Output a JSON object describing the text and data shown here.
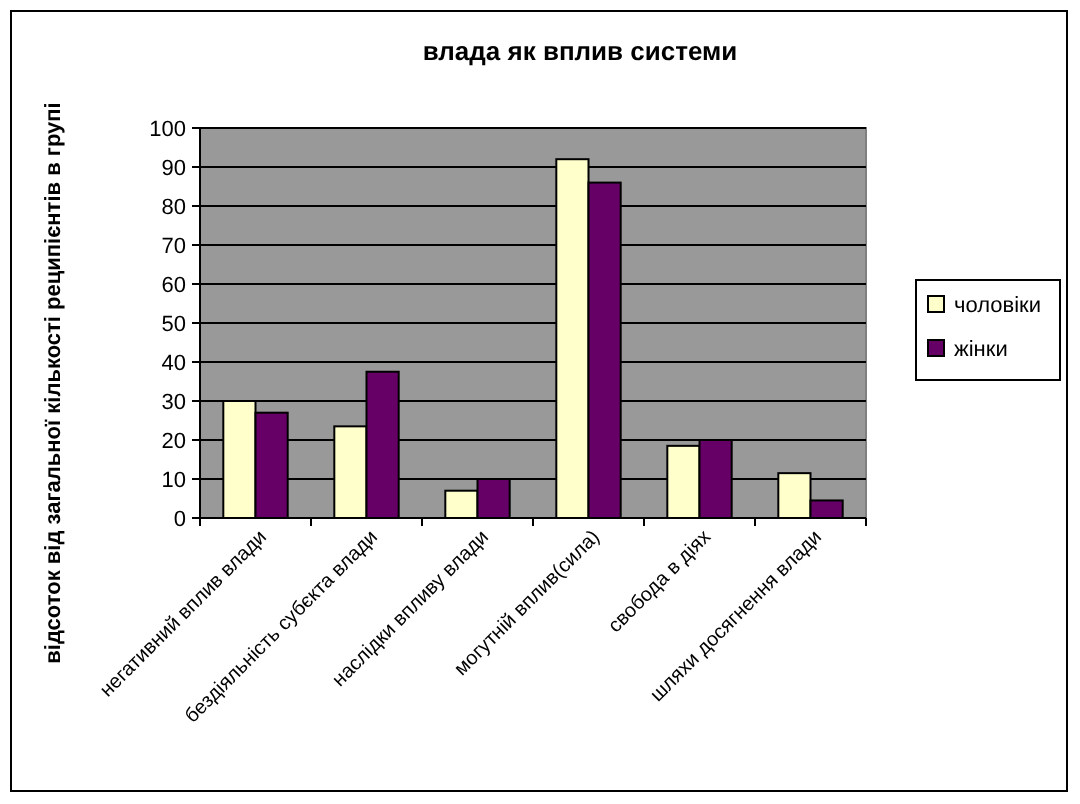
{
  "chart_data": {
    "type": "bar",
    "title": "влада як вплив системи",
    "ylabel": "відсоток від загальної кількості реципієнтів в групі",
    "categories": [
      "негативний вплив влади",
      "бездіяльність субєкта влади",
      "наслідки впливу влади",
      "могутній вплив(сила)",
      "свобода в діях",
      "шляхи досягнення влади"
    ],
    "series": [
      {
        "name": "чоловіки",
        "color": "#ffffcc",
        "values": [
          30,
          23.5,
          7,
          92,
          18.5,
          11.5
        ]
      },
      {
        "name": "жінки",
        "color": "#660066",
        "values": [
          27,
          37.5,
          10,
          86,
          20,
          4.5
        ]
      }
    ],
    "ylim": [
      0,
      100
    ],
    "yticks": [
      0,
      10,
      20,
      30,
      40,
      50,
      60,
      70,
      80,
      90,
      100
    ],
    "grid": "y",
    "legend": "right"
  }
}
